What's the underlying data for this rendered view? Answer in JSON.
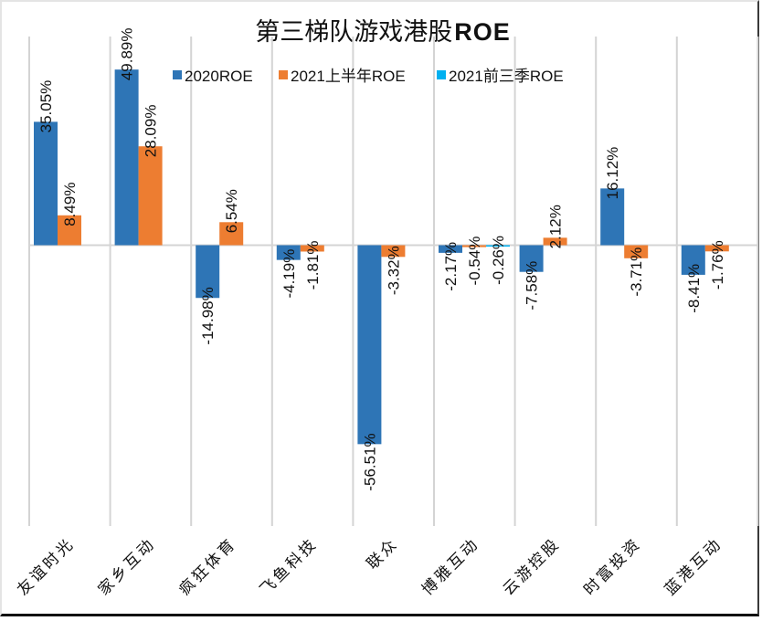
{
  "chart_data": {
    "type": "bar",
    "title": "第三梯队游戏港股ROE",
    "title_parts": {
      "cjk": "第三梯队游戏港股",
      "latin": "ROE"
    },
    "xlabel": "",
    "ylabel": "",
    "ylim": [
      -80,
      60
    ],
    "grid": "vertical-category-separators",
    "legend_position": "top",
    "categories": [
      "友谊时光",
      "家乡互动",
      "疯狂体育",
      "飞鱼科技",
      "联众",
      "博雅互动",
      "云游控股",
      "时富投资",
      "蓝港互动"
    ],
    "series": [
      {
        "name": "2020ROE",
        "color": "#2E75B6",
        "values": [
          35.05,
          49.89,
          -14.98,
          -4.19,
          -56.51,
          -2.17,
          -7.58,
          16.12,
          -8.41
        ]
      },
      {
        "name": "2021上半年ROE",
        "color": "#ED7D31",
        "values": [
          8.49,
          28.09,
          6.54,
          -1.81,
          -3.32,
          -0.54,
          2.12,
          -3.71,
          -1.76
        ]
      },
      {
        "name": "2021前三季ROE",
        "color": "#00B0F0",
        "values": [
          null,
          null,
          null,
          null,
          null,
          -0.26,
          null,
          null,
          null
        ]
      }
    ],
    "value_suffix": "%",
    "data_label_rotation": "vertical",
    "category_label_rotation": "diagonal"
  }
}
